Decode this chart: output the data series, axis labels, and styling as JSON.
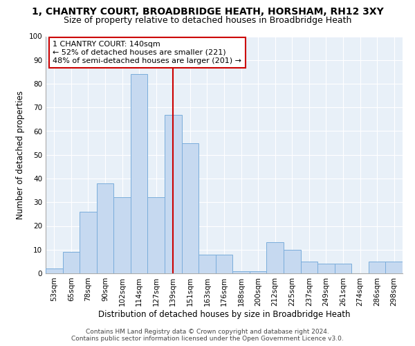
{
  "title": "1, CHANTRY COURT, BROADBRIDGE HEATH, HORSHAM, RH12 3XY",
  "subtitle": "Size of property relative to detached houses in Broadbridge Heath",
  "xlabel": "Distribution of detached houses by size in Broadbridge Heath",
  "ylabel": "Number of detached properties",
  "footer_line1": "Contains HM Land Registry data © Crown copyright and database right 2024.",
  "footer_line2": "Contains public sector information licensed under the Open Government Licence v3.0.",
  "bin_labels": [
    "53sqm",
    "65sqm",
    "78sqm",
    "90sqm",
    "102sqm",
    "114sqm",
    "127sqm",
    "139sqm",
    "151sqm",
    "163sqm",
    "176sqm",
    "188sqm",
    "200sqm",
    "212sqm",
    "225sqm",
    "237sqm",
    "249sqm",
    "261sqm",
    "274sqm",
    "286sqm",
    "298sqm"
  ],
  "bar_heights": [
    2,
    9,
    26,
    38,
    32,
    84,
    32,
    67,
    55,
    8,
    8,
    1,
    1,
    13,
    10,
    5,
    4,
    4,
    0,
    5,
    5
  ],
  "bar_color": "#c6d9f0",
  "bar_edge_color": "#7aaddb",
  "annotation_text_line1": "1 CHANTRY COURT: 140sqm",
  "annotation_text_line2": "← 52% of detached houses are smaller (221)",
  "annotation_text_line3": "48% of semi-detached houses are larger (201) →",
  "vline_color": "#cc0000",
  "vline_x": 7.0,
  "ylim": [
    0,
    100
  ],
  "yticks": [
    0,
    10,
    20,
    30,
    40,
    50,
    60,
    70,
    80,
    90,
    100
  ],
  "bg_color": "#e8f0f8",
  "grid_color": "#ffffff",
  "annotation_box_edgecolor": "#cc0000",
  "title_fontsize": 10,
  "subtitle_fontsize": 9,
  "xlabel_fontsize": 8.5,
  "ylabel_fontsize": 8.5,
  "tick_fontsize": 7.5,
  "footer_fontsize": 6.5,
  "annotation_fontsize": 8
}
